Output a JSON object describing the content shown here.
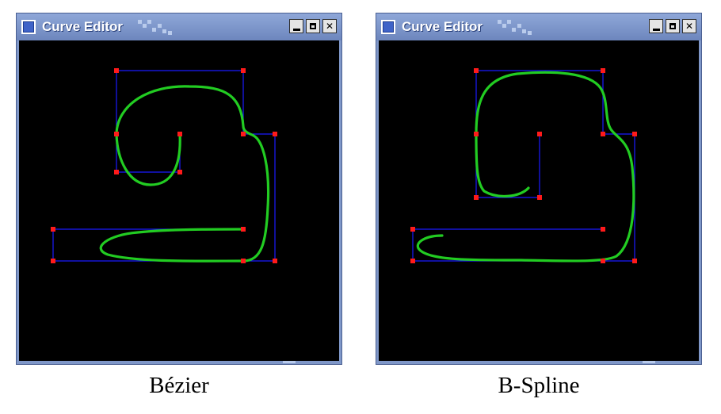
{
  "windows": [
    {
      "title": "Curve Editor",
      "controls": [
        "minimize",
        "maximize",
        "close"
      ],
      "caption": "Bézier"
    },
    {
      "title": "Curve Editor",
      "controls": [
        "minimize",
        "maximize",
        "close"
      ],
      "caption": "B-Spline"
    }
  ],
  "colors": {
    "canvas_background": "#000000",
    "control_polygon": "#1a1aff",
    "control_point": "#ff1a1a",
    "curve": "#22cc22",
    "titlebar": "#7f97c8"
  },
  "icons": {
    "app": "window-app-icon",
    "minimize": "minimize-icon",
    "maximize": "maximize-icon",
    "close": "close-icon"
  }
}
